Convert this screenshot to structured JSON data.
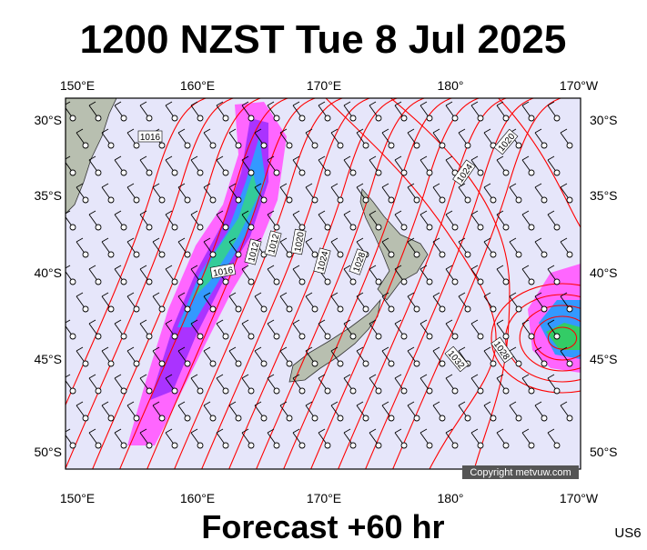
{
  "title": "1200 NZST Tue 8 Jul 2025",
  "longitude_labels": [
    "150°E",
    "160°E",
    "170°E",
    "180°",
    "170°W"
  ],
  "latitude_labels": [
    "30°S",
    "35°S",
    "40°S",
    "45°S",
    "50°S"
  ],
  "isobar_labels": [
    "1016",
    "1020",
    "1024",
    "1016",
    "1012",
    "1012",
    "1020",
    "1024",
    "1028",
    "1032",
    "1028"
  ],
  "copyright": "Copyright metvuw.com",
  "footer": "Forecast +60 hr",
  "code": "US6"
}
